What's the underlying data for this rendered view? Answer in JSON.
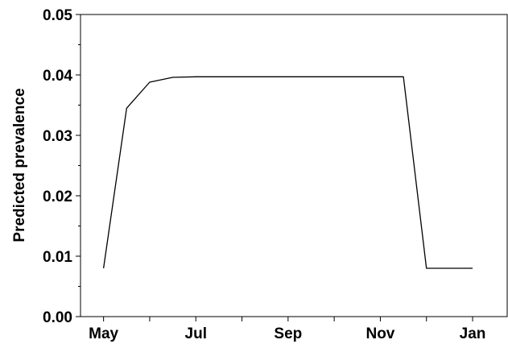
{
  "chart_data": {
    "type": "line",
    "title": "",
    "xlabel": "",
    "ylabel": "Predicted  prevalence",
    "x_ticks": [
      "May",
      "",
      "Jul",
      "",
      "Sep",
      "",
      "Nov",
      "",
      "Jan"
    ],
    "y_ticks": [
      "0.00",
      "0.01",
      "0.02",
      "0.03",
      "0.04",
      "0.05"
    ],
    "y_minor_ticks": [
      0.005,
      0.015,
      0.025,
      0.035,
      0.045
    ],
    "ylim": [
      0,
      0.05
    ],
    "x_month_range": [
      4.5,
      13.75
    ],
    "grid": false,
    "legend": "none",
    "series": [
      {
        "x": [
          5.0,
          5.5,
          6.0,
          6.5,
          7.0,
          7.5,
          8.0,
          9.0,
          10.0,
          11.0,
          11.5,
          12.0,
          13.0
        ],
        "values": [
          0.008,
          0.0345,
          0.0388,
          0.0396,
          0.0397,
          0.0397,
          0.0397,
          0.0397,
          0.0397,
          0.0397,
          0.0397,
          0.008,
          0.008
        ],
        "color": "#000000"
      }
    ]
  }
}
